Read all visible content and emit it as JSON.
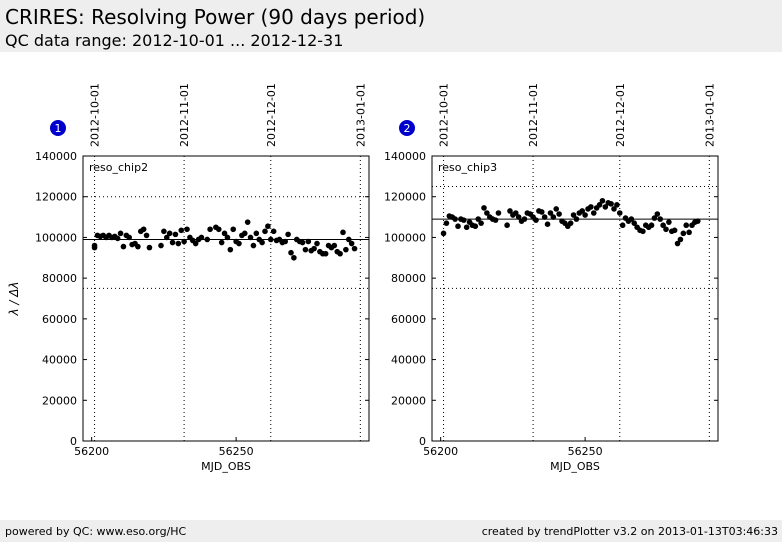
{
  "header": {
    "title": "CRIRES: Resolving Power (90 days period)",
    "subtitle": "QC data range: 2012-10-01 ... 2012-12-31"
  },
  "footer": {
    "left": "powered by QC: www.eso.org/HC",
    "right": "created by trendPlotter v3.2 on 2013-01-13T03:46:33"
  },
  "chart_data": [
    {
      "type": "scatter",
      "panel": "1",
      "xlabel": "MJD_OBS",
      "ylabel": "λ / Δλ",
      "xlim": [
        56197,
        56296
      ],
      "ylim": [
        0,
        140000
      ],
      "xticks": [
        56200,
        56250
      ],
      "yticks": [
        0,
        20000,
        40000,
        60000,
        80000,
        100000,
        120000,
        140000
      ],
      "x2ticks": [
        {
          "value": 56201,
          "label": "2012-10-01"
        },
        {
          "value": 56232,
          "label": "2012-11-01"
        },
        {
          "value": 56262,
          "label": "2012-12-01"
        },
        {
          "value": 56293,
          "label": "2013-01-01"
        }
      ],
      "hlines": [
        {
          "value": 99000,
          "style": "solid"
        },
        {
          "value": 120000,
          "style": "dotted"
        },
        {
          "value": 75000,
          "style": "dotted"
        }
      ],
      "x": [
        56201,
        56201,
        56202,
        56203,
        56204,
        56205,
        56206,
        56207,
        56208,
        56209,
        56210,
        56211,
        56212,
        56213,
        56214,
        56215,
        56216,
        56217,
        56218,
        56219,
        56220,
        56224,
        56225,
        56226,
        56227,
        56228,
        56229,
        56230,
        56231,
        56232,
        56233,
        56234,
        56235,
        56236,
        56237,
        56238,
        56240,
        56241,
        56243,
        56244,
        56245,
        56246,
        56247,
        56248,
        56249,
        56250,
        56251,
        56252,
        56253,
        56254,
        56255,
        56256,
        56257,
        56258,
        56259,
        56260,
        56261,
        56262,
        56263,
        56264,
        56265,
        56266,
        56267,
        56268,
        56269,
        56270,
        56271,
        56272,
        56273,
        56274,
        56275,
        56276,
        56277,
        56278,
        56279,
        56280,
        56281,
        56282,
        56283,
        56284,
        56285,
        56286,
        56287,
        56288,
        56289,
        56290,
        56291
      ],
      "series": [
        {
          "name": "reso_chip2",
          "color": "#000000",
          "values": [
            95000,
            96000,
            101000,
            100500,
            101000,
            100000,
            101000,
            100000,
            100500,
            99500,
            102000,
            95500,
            101000,
            100000,
            96500,
            97000,
            95500,
            103000,
            104000,
            101000,
            95000,
            96000,
            103000,
            100000,
            102000,
            97500,
            101500,
            97000,
            103500,
            98000,
            104000,
            100000,
            98500,
            97000,
            99000,
            100000,
            99000,
            104000,
            105000,
            104000,
            97500,
            102000,
            100000,
            94000,
            104000,
            98000,
            97000,
            101000,
            102000,
            107500,
            100000,
            96000,
            102000,
            99000,
            97500,
            103000,
            105500,
            99000,
            103000,
            98500,
            99000,
            97500,
            98000,
            101500,
            92500,
            90000,
            99000,
            98000,
            97500,
            94000,
            98000,
            93500,
            94500,
            97000,
            93000,
            92000,
            92000,
            96000,
            95000,
            96000,
            93000,
            92000,
            102500,
            94000,
            99000,
            97000,
            94500
          ]
        }
      ]
    },
    {
      "type": "scatter",
      "panel": "2",
      "xlabel": "MJD_OBS",
      "xlim": [
        56197,
        56296
      ],
      "ylim": [
        0,
        140000
      ],
      "xticks": [
        56200,
        56250
      ],
      "yticks": [
        0,
        20000,
        40000,
        60000,
        80000,
        100000,
        120000,
        140000
      ],
      "x2ticks": [
        {
          "value": 56201,
          "label": "2012-10-01"
        },
        {
          "value": 56232,
          "label": "2012-11-01"
        },
        {
          "value": 56262,
          "label": "2012-12-01"
        },
        {
          "value": 56293,
          "label": "2013-01-01"
        }
      ],
      "hlines": [
        {
          "value": 109000,
          "style": "solid"
        },
        {
          "value": 125000,
          "style": "dotted"
        },
        {
          "value": 75000,
          "style": "dotted"
        }
      ],
      "x": [
        56201,
        56202,
        56203,
        56204,
        56205,
        56206,
        56207,
        56208,
        56209,
        56210,
        56211,
        56212,
        56213,
        56214,
        56215,
        56216,
        56217,
        56218,
        56219,
        56220,
        56223,
        56224,
        56225,
        56226,
        56227,
        56228,
        56229,
        56230,
        56231,
        56232,
        56233,
        56234,
        56235,
        56236,
        56237,
        56238,
        56239,
        56240,
        56241,
        56242,
        56243,
        56244,
        56245,
        56246,
        56247,
        56248,
        56249,
        56250,
        56251,
        56252,
        56253,
        56254,
        56255,
        56256,
        56257,
        56258,
        56259,
        56260,
        56261,
        56262,
        56263,
        56264,
        56265,
        56266,
        56267,
        56268,
        56269,
        56270,
        56271,
        56272,
        56273,
        56274,
        56275,
        56276,
        56277,
        56278,
        56279,
        56280,
        56281,
        56282,
        56283,
        56284,
        56285,
        56286,
        56287,
        56288,
        56289
      ],
      "series": [
        {
          "name": "reso_chip3",
          "color": "#000000",
          "values": [
            102000,
            107000,
            110500,
            110000,
            109000,
            105500,
            109000,
            108500,
            105000,
            107500,
            106000,
            105500,
            109000,
            107000,
            114500,
            112000,
            110000,
            109000,
            108500,
            112000,
            106000,
            113000,
            111000,
            112000,
            110000,
            108000,
            109000,
            112000,
            111500,
            110000,
            108500,
            113000,
            112500,
            110000,
            106500,
            112000,
            110000,
            114000,
            111500,
            108000,
            107000,
            105500,
            107000,
            111000,
            109000,
            112000,
            113000,
            111000,
            114000,
            115000,
            112000,
            114500,
            116000,
            118000,
            115000,
            117000,
            116500,
            114000,
            116000,
            112000,
            106000,
            109500,
            108000,
            109000,
            107000,
            105000,
            103500,
            103000,
            106000,
            105000,
            106000,
            109500,
            111500,
            109000,
            106000,
            104000,
            107500,
            103000,
            103500,
            97000,
            99000,
            102000,
            106000,
            102500,
            106000,
            107500,
            108000
          ]
        }
      ]
    }
  ]
}
